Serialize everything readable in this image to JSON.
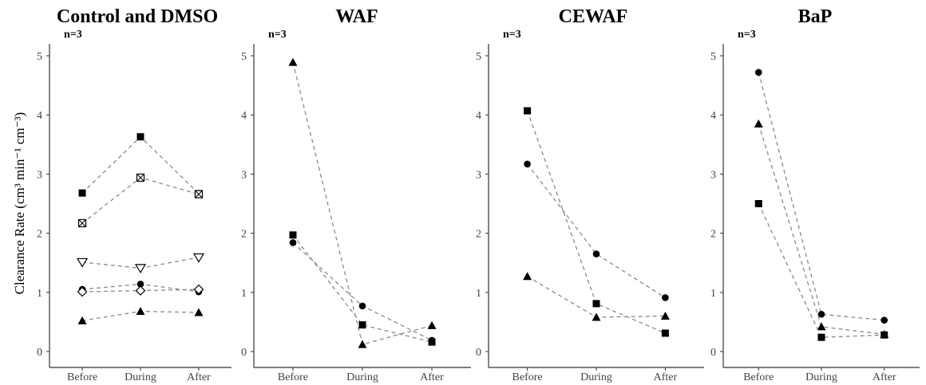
{
  "figure": {
    "ylabel_main": "Clearance Rate",
    "ylabel_unit": "(cm³ min⁻¹ cm⁻³)"
  },
  "chart_data": [
    {
      "type": "line",
      "title": "Control and DMSO",
      "annotation": "n=3",
      "categories": [
        "Before",
        "During",
        "After"
      ],
      "ylim": [
        0,
        5
      ],
      "yticks": [
        0,
        1,
        2,
        3,
        4,
        5
      ],
      "grid": false,
      "series": [
        {
          "marker": "square",
          "values": [
            2.68,
            3.63,
            2.67
          ]
        },
        {
          "marker": "square-x",
          "values": [
            2.17,
            2.94,
            2.66
          ]
        },
        {
          "marker": "triangle-down-open",
          "values": [
            1.51,
            1.41,
            1.59
          ]
        },
        {
          "marker": "circle",
          "values": [
            1.05,
            1.14,
            1.01
          ]
        },
        {
          "marker": "diamond-open",
          "values": [
            1.01,
            1.03,
            1.05
          ]
        },
        {
          "marker": "triangle",
          "values": [
            0.52,
            0.68,
            0.66
          ]
        }
      ]
    },
    {
      "type": "line",
      "title": "WAF",
      "annotation": "n=3",
      "categories": [
        "Before",
        "During",
        "After"
      ],
      "ylim": [
        0,
        5
      ],
      "yticks": [
        0,
        1,
        2,
        3,
        4,
        5
      ],
      "grid": false,
      "series": [
        {
          "marker": "triangle",
          "values": [
            4.89,
            0.12,
            0.44
          ]
        },
        {
          "marker": "square",
          "values": [
            1.97,
            0.45,
            0.16
          ]
        },
        {
          "marker": "circle",
          "values": [
            1.84,
            0.77,
            0.19
          ]
        }
      ]
    },
    {
      "type": "line",
      "title": "CEWAF",
      "annotation": "n=3",
      "categories": [
        "Before",
        "During",
        "After"
      ],
      "ylim": [
        0,
        5
      ],
      "yticks": [
        0,
        1,
        2,
        3,
        4,
        5
      ],
      "grid": false,
      "series": [
        {
          "marker": "square",
          "values": [
            4.07,
            0.81,
            0.31
          ]
        },
        {
          "marker": "circle",
          "values": [
            3.17,
            1.65,
            0.91
          ]
        },
        {
          "marker": "triangle",
          "values": [
            1.27,
            0.58,
            0.6
          ]
        }
      ]
    },
    {
      "type": "line",
      "title": "BaP",
      "annotation": "n=3",
      "categories": [
        "Before",
        "During",
        "After"
      ],
      "ylim": [
        0,
        5
      ],
      "yticks": [
        0,
        1,
        2,
        3,
        4,
        5
      ],
      "grid": false,
      "series": [
        {
          "marker": "circle",
          "values": [
            4.72,
            0.63,
            0.53
          ]
        },
        {
          "marker": "triangle",
          "values": [
            3.85,
            0.42,
            0.29
          ]
        },
        {
          "marker": "square",
          "values": [
            2.5,
            0.24,
            0.28
          ]
        }
      ]
    }
  ]
}
